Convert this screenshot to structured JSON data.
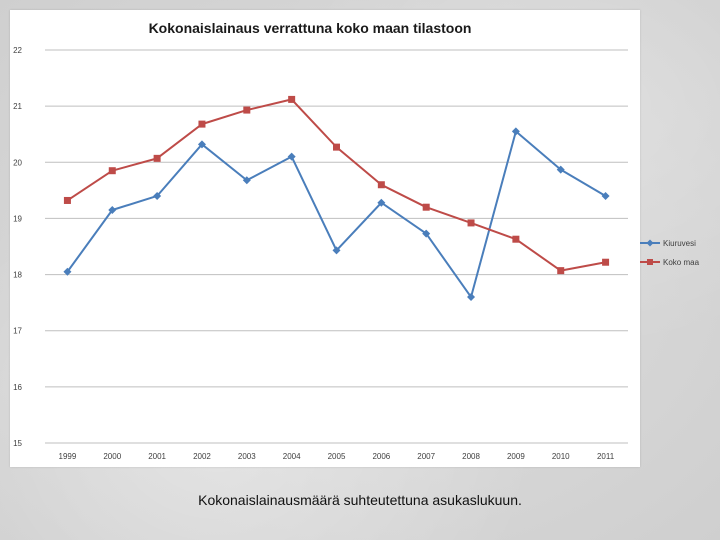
{
  "caption": "Kokonaislainausmäärä suhteutettuna asukaslukuun.",
  "chart_data": {
    "type": "line",
    "title": "Kokonaislainaus verrattuna koko maan tilastoon",
    "xlabel": "",
    "ylabel": "",
    "categories": [
      "1999",
      "2000",
      "2001",
      "2002",
      "2003",
      "2004",
      "2005",
      "2006",
      "2007",
      "2008",
      "2009",
      "2010",
      "2011"
    ],
    "yticks": [
      "15",
      "16",
      "17",
      "18",
      "19",
      "20",
      "21",
      "22"
    ],
    "ylim": [
      15,
      22
    ],
    "grid": true,
    "legend_position": "right",
    "series": [
      {
        "name": "Kiuruvesi",
        "color": "#4a7ebb",
        "marker": "diamond",
        "values": [
          18.05,
          19.15,
          19.4,
          20.32,
          19.68,
          20.1,
          18.43,
          19.28,
          18.73,
          17.6,
          20.55,
          19.87,
          19.4
        ]
      },
      {
        "name": "Koko maa",
        "color": "#be4b48",
        "marker": "square",
        "values": [
          19.32,
          19.85,
          20.07,
          20.68,
          20.93,
          21.12,
          20.27,
          19.6,
          19.2,
          18.92,
          18.63,
          18.07,
          18.22
        ]
      }
    ]
  }
}
